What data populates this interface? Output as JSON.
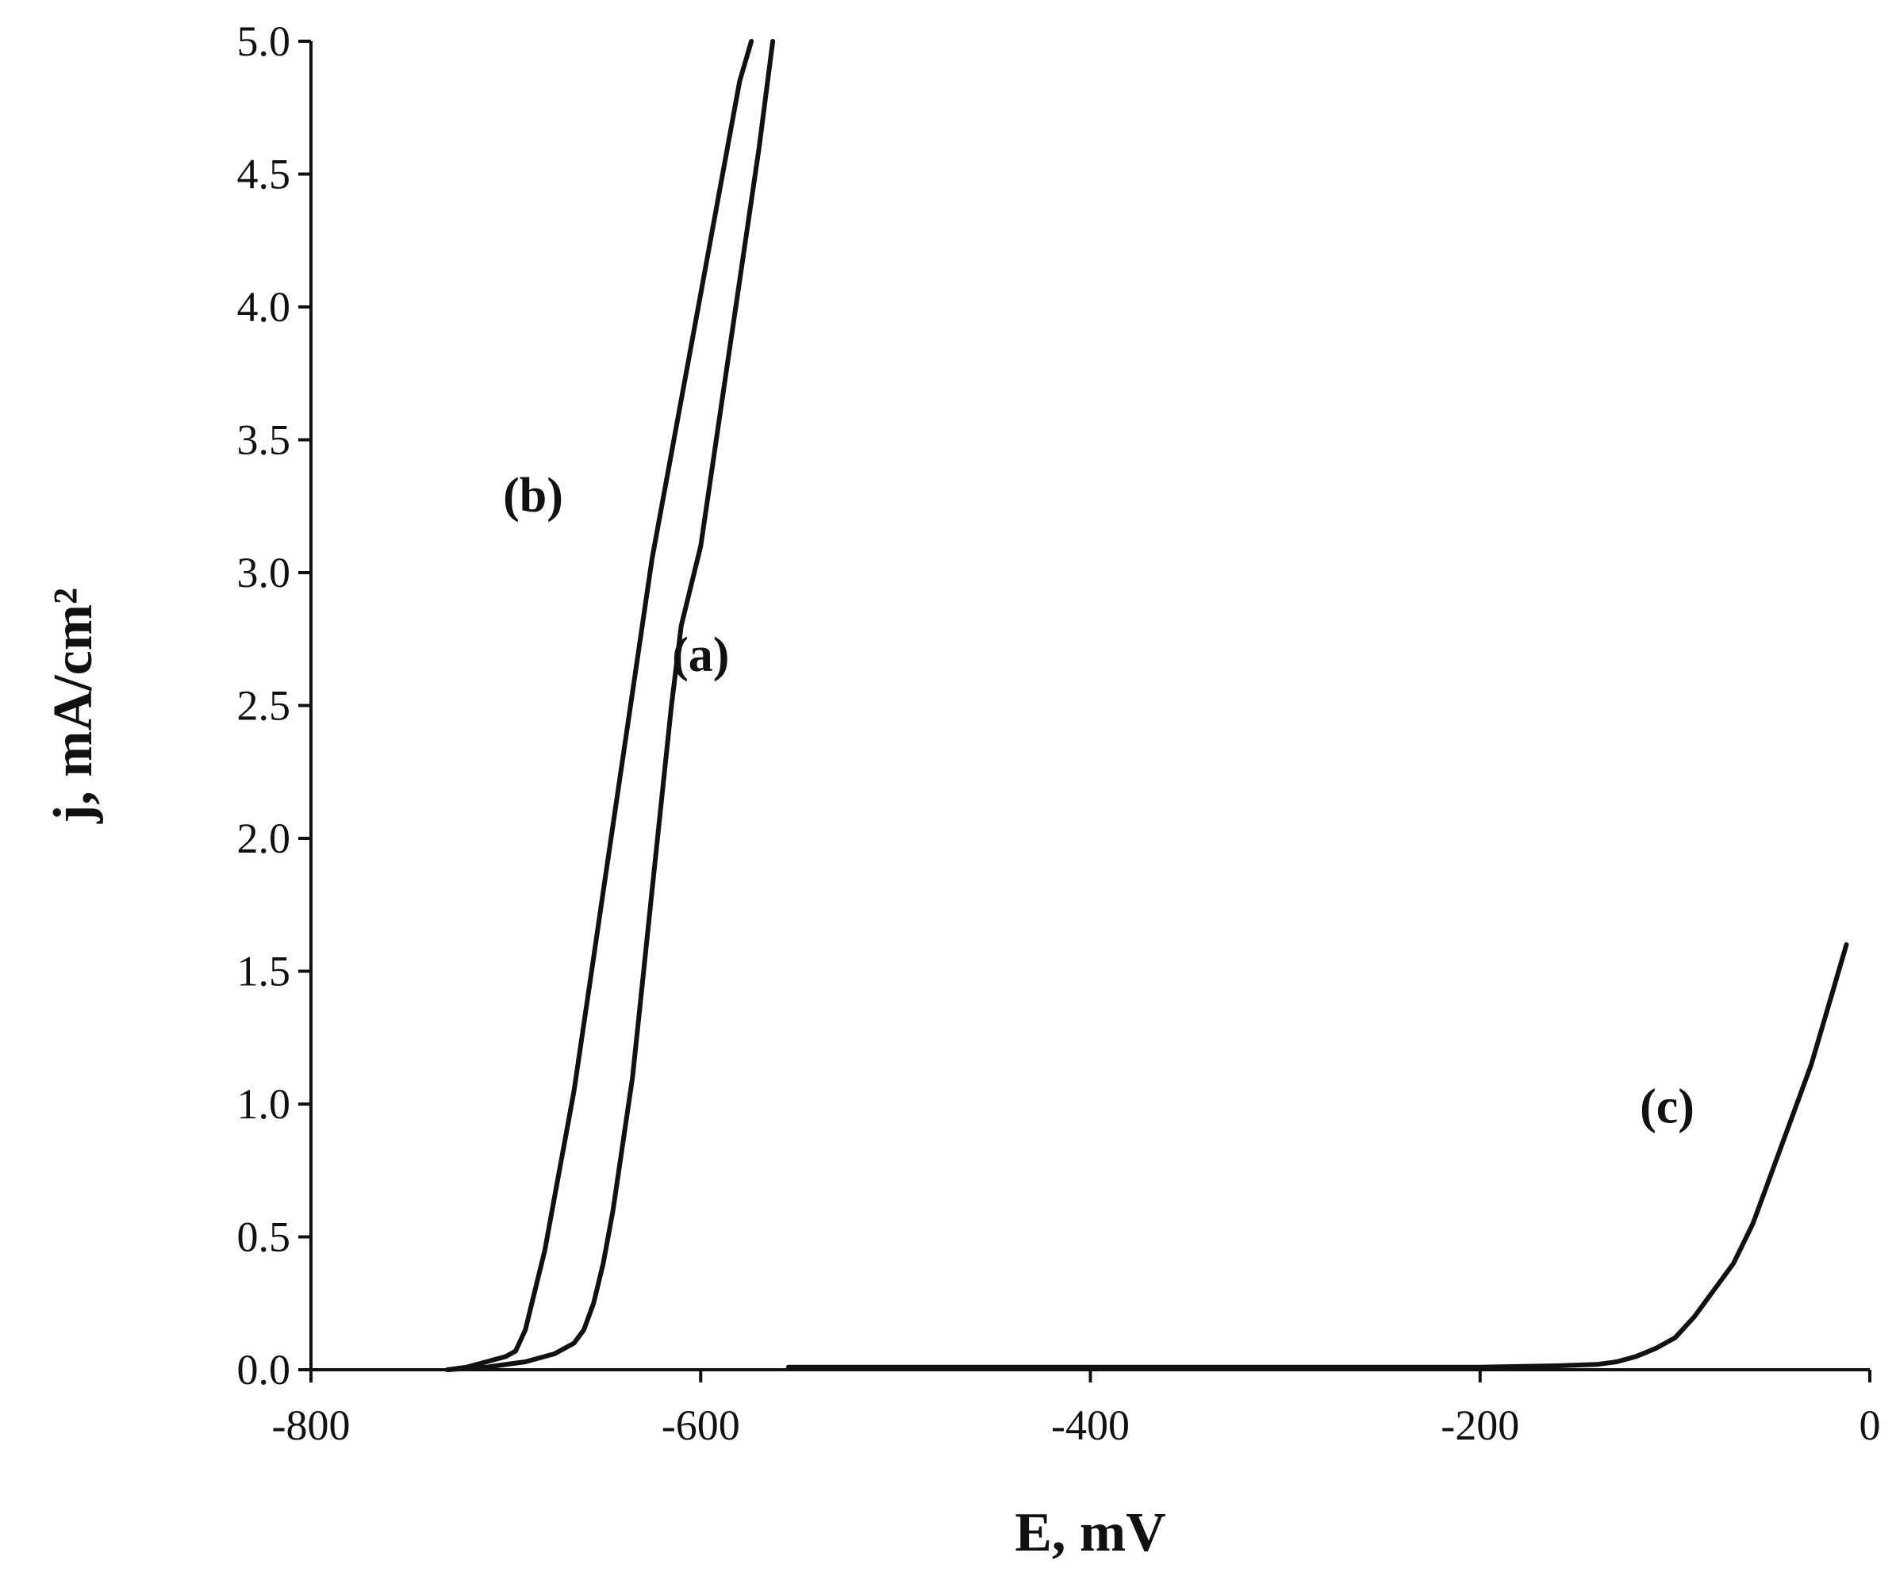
{
  "chart_data": {
    "type": "line",
    "title": "",
    "xlabel": "E, mV",
    "ylabel": "j, mA/cm²",
    "xlim": [
      -800,
      0
    ],
    "ylim": [
      0,
      5
    ],
    "xticks": [
      -800,
      -600,
      -400,
      -200,
      0
    ],
    "xtick_labels": [
      "-800",
      "-600",
      "-400",
      "-200",
      "0"
    ],
    "yticks": [
      0,
      0.5,
      1,
      1.5,
      2,
      2.5,
      3,
      3.5,
      4,
      4.5,
      5
    ],
    "ytick_labels": [
      "0.0",
      "0.5",
      "1.0",
      "1.5",
      "2.0",
      "2.5",
      "3.0",
      "3.5",
      "4.0",
      "4.5",
      "5.0"
    ],
    "grid": false,
    "legend": "none",
    "series": [
      {
        "label": "(a)",
        "x": [
          -730,
          -710,
          -690,
          -675,
          -665,
          -660,
          -655,
          -650,
          -645,
          -640,
          -635,
          -630,
          -625,
          -620,
          -615,
          -610,
          -600,
          -590,
          -580,
          -570,
          -563
        ],
        "y": [
          0,
          0.01,
          0.03,
          0.06,
          0.1,
          0.15,
          0.25,
          0.4,
          0.6,
          0.85,
          1.1,
          1.45,
          1.8,
          2.15,
          2.5,
          2.8,
          3.1,
          3.6,
          4.1,
          4.6,
          5.0
        ]
      },
      {
        "label": "(b)",
        "x": [
          -730,
          -720,
          -710,
          -700,
          -695,
          -690,
          -685,
          -680,
          -675,
          -670,
          -665,
          -660,
          -655,
          -650,
          -645,
          -640,
          -635,
          -630,
          -625,
          -620,
          -610,
          -600,
          -590,
          -580,
          -574
        ],
        "y": [
          0,
          0.01,
          0.03,
          0.05,
          0.07,
          0.15,
          0.3,
          0.45,
          0.65,
          0.85,
          1.05,
          1.3,
          1.55,
          1.8,
          2.05,
          2.3,
          2.55,
          2.8,
          3.05,
          3.25,
          3.65,
          4.05,
          4.45,
          4.85,
          5.0
        ]
      },
      {
        "label": "(c)",
        "x": [
          -555,
          -500,
          -400,
          -300,
          -200,
          -160,
          -140,
          -130,
          -120,
          -110,
          -100,
          -90,
          -80,
          -70,
          -60,
          -50,
          -40,
          -30,
          -20,
          -12
        ],
        "y": [
          0.01,
          0.01,
          0.01,
          0.01,
          0.01,
          0.015,
          0.02,
          0.03,
          0.05,
          0.08,
          0.12,
          0.2,
          0.3,
          0.4,
          0.55,
          0.75,
          0.95,
          1.15,
          1.4,
          1.6
        ]
      }
    ]
  }
}
